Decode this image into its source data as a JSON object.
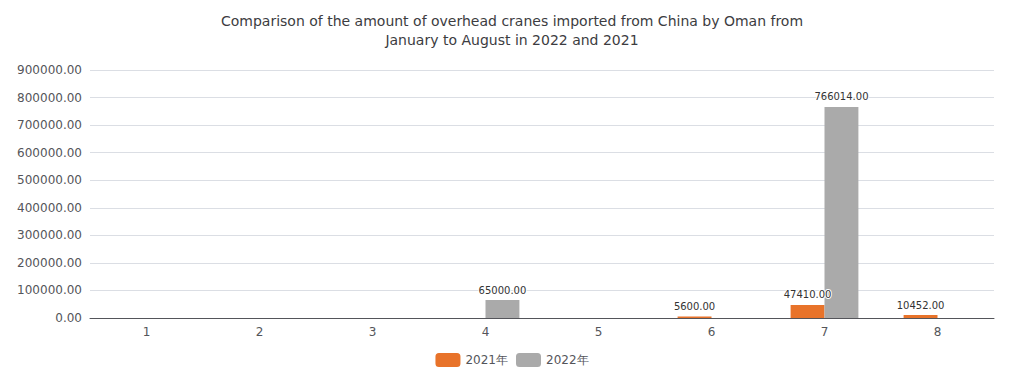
{
  "chart_data": {
    "type": "bar",
    "title": "Comparison of the amount of overhead cranes imported from China by Oman from\nJanuary to August in 2022 and 2021",
    "categories": [
      "1",
      "2",
      "3",
      "4",
      "5",
      "6",
      "7",
      "8"
    ],
    "series": [
      {
        "name": "2021年",
        "color": "#E8732A",
        "values": [
          0,
          0,
          0,
          0,
          0,
          5600.0,
          47410.0,
          10452.0
        ],
        "value_labels": [
          null,
          null,
          null,
          null,
          null,
          "5600.00",
          "47410.00",
          "10452.00"
        ]
      },
      {
        "name": "2022年",
        "color": "#AAAAAA",
        "values": [
          0,
          0,
          0,
          65000.0,
          0,
          0,
          766014.0,
          0
        ],
        "value_labels": [
          null,
          null,
          null,
          "65000.00",
          null,
          null,
          "766014.00",
          null
        ]
      }
    ],
    "ylim": [
      0,
      900000
    ],
    "yticks": [
      {
        "value": 0,
        "label": "0.00"
      },
      {
        "value": 100000,
        "label": "100000.00"
      },
      {
        "value": 200000,
        "label": "200000.00"
      },
      {
        "value": 300000,
        "label": "300000.00"
      },
      {
        "value": 400000,
        "label": "400000.00"
      },
      {
        "value": 500000,
        "label": "500000.00"
      },
      {
        "value": 600000,
        "label": "600000.00"
      },
      {
        "value": 700000,
        "label": "700000.00"
      },
      {
        "value": 800000,
        "label": "800000.00"
      },
      {
        "value": 900000,
        "label": "900000.00"
      }
    ],
    "grid": true,
    "legend": "bottom",
    "data_labels": true
  }
}
